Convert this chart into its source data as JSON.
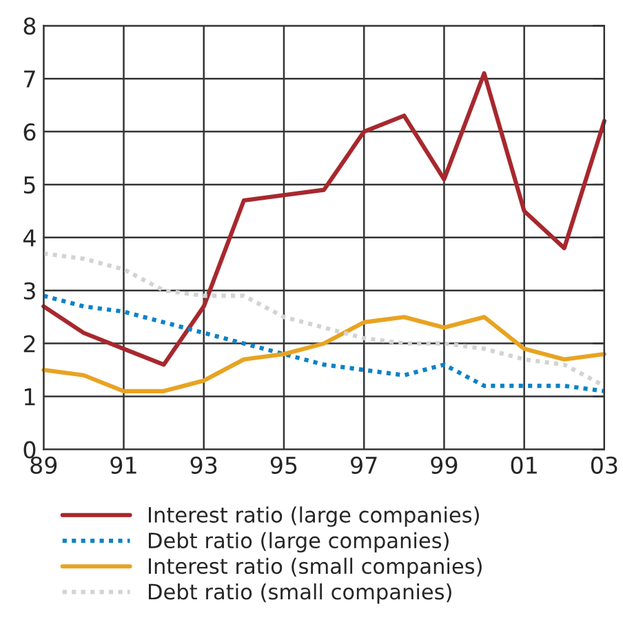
{
  "chart_data": {
    "type": "line",
    "x": [
      1989,
      1990,
      1991,
      1992,
      1993,
      1994,
      1995,
      1996,
      1997,
      1998,
      1999,
      2000,
      2001,
      2002,
      2003
    ],
    "series": [
      {
        "name": "Interest ratio (large companies)",
        "color": "#a7282e",
        "line_style": "solid",
        "values": [
          2.7,
          2.2,
          1.9,
          1.6,
          2.7,
          4.7,
          4.8,
          4.9,
          6.0,
          6.3,
          5.1,
          7.1,
          4.5,
          3.8,
          6.2
        ]
      },
      {
        "name": "Debt ratio (large companies)",
        "color": "#0a82c8",
        "line_style": "dotted",
        "values": [
          2.9,
          2.7,
          2.6,
          2.4,
          2.2,
          2.0,
          1.8,
          1.6,
          1.5,
          1.4,
          1.6,
          1.2,
          1.2,
          1.2,
          1.1
        ]
      },
      {
        "name": "Interest ratio (small companies)",
        "color": "#e8a321",
        "line_style": "solid",
        "values": [
          1.5,
          1.4,
          1.1,
          1.1,
          1.3,
          1.7,
          1.8,
          2.0,
          2.4,
          2.5,
          2.3,
          2.5,
          1.9,
          1.7,
          1.8
        ]
      },
      {
        "name": "Debt ratio (small companies)",
        "color": "#d3d3d3",
        "line_style": "dotted",
        "values": [
          3.7,
          3.6,
          3.4,
          3.0,
          2.9,
          2.9,
          2.5,
          2.3,
          2.1,
          2.0,
          2.0,
          1.9,
          1.7,
          1.6,
          1.2
        ]
      }
    ],
    "xlim": [
      1989,
      2003
    ],
    "xticks": [
      {
        "value": 1989,
        "label": "89"
      },
      {
        "value": 1991,
        "label": "91"
      },
      {
        "value": 1993,
        "label": "93"
      },
      {
        "value": 1995,
        "label": "95"
      },
      {
        "value": 1997,
        "label": "97"
      },
      {
        "value": 1999,
        "label": "99"
      },
      {
        "value": 2001,
        "label": "01"
      },
      {
        "value": 2003,
        "label": "03"
      }
    ],
    "ylim": [
      0,
      8
    ],
    "yticks": [
      0,
      1,
      2,
      3,
      4,
      5,
      6,
      7,
      8
    ],
    "grid": true,
    "legend": "bottom",
    "marker": "none"
  }
}
